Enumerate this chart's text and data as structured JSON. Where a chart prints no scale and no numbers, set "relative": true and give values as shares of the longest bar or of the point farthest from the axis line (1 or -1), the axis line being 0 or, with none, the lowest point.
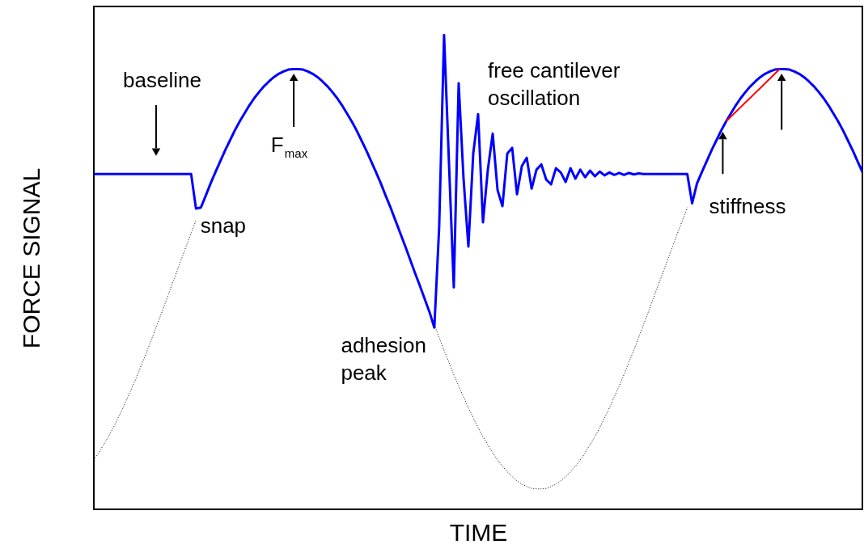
{
  "chart_data": {
    "type": "line",
    "relative": true,
    "xlabel": "TIME",
    "ylabel": "FORCE SIGNAL",
    "categories": [
      null,
      null,
      null,
      null,
      null,
      null,
      null,
      null,
      null,
      null,
      null,
      null,
      null,
      null,
      null,
      null,
      null,
      null,
      null,
      null,
      null,
      null,
      null,
      null,
      null,
      null,
      null,
      null,
      null,
      null,
      null,
      null,
      null,
      null,
      null,
      null,
      null,
      null,
      null,
      null,
      null,
      null,
      null,
      null,
      null,
      null,
      null,
      null,
      null,
      null,
      null,
      null,
      null,
      null,
      null,
      null,
      null,
      null,
      null,
      null,
      null,
      null,
      null,
      null,
      null,
      null,
      null,
      null,
      null,
      null,
      null,
      null,
      null,
      null,
      null,
      null,
      null,
      null,
      null,
      null,
      null,
      null,
      null,
      null,
      null,
      null,
      null,
      null,
      null,
      null,
      null,
      null,
      null,
      null,
      null,
      null,
      null,
      null,
      null,
      null,
      null,
      null,
      null,
      null,
      null,
      null,
      null,
      null,
      null,
      null,
      null,
      null,
      null,
      null,
      null,
      null,
      null,
      null,
      null,
      null,
      null,
      null,
      null,
      null,
      null,
      null,
      null,
      null,
      null,
      null,
      null,
      null,
      null,
      null,
      null,
      null,
      null,
      null,
      null,
      null,
      null,
      null,
      null,
      null,
      null,
      null,
      null,
      null,
      null,
      null,
      null,
      null,
      null,
      null,
      null,
      null,
      null,
      null,
      null
    ],
    "series": [
      {
        "color": "#0000ff",
        "line_style": "solid",
        "values": [
          0.707,
          0.707,
          0.707,
          0.707,
          0.707,
          0.707,
          0.707,
          0.707,
          0.707,
          0.707,
          0.707,
          0.707,
          0.707,
          0.707,
          0.707,
          0.707,
          0.707,
          0.707,
          0.707,
          0.707,
          0.707,
          0.634,
          0.636,
          0.661,
          0.687,
          0.711,
          0.734,
          0.757,
          0.778,
          0.799,
          0.818,
          0.835,
          0.852,
          0.867,
          0.88,
          0.892,
          0.902,
          0.911,
          0.918,
          0.923,
          0.927,
          0.928,
          0.928,
          0.927,
          0.923,
          0.918,
          0.911,
          0.902,
          0.892,
          0.88,
          0.867,
          0.852,
          0.835,
          0.818,
          0.799,
          0.778,
          0.757,
          0.734,
          0.711,
          0.687,
          0.661,
          0.636,
          0.609,
          0.582,
          0.555,
          0.527,
          0.499,
          0.472,
          0.444,
          0.416,
          0.383,
          0.596,
          1.0,
          0.733,
          0.468,
          0.898,
          0.698,
          0.554,
          0.75,
          0.833,
          0.605,
          0.716,
          0.792,
          0.673,
          0.639,
          0.75,
          0.762,
          0.664,
          0.724,
          0.741,
          0.676,
          0.716,
          0.727,
          0.695,
          0.685,
          0.719,
          0.71,
          0.69,
          0.719,
          0.697,
          0.716,
          0.7,
          0.714,
          0.702,
          0.712,
          0.704,
          0.71,
          0.705,
          0.709,
          0.705,
          0.709,
          0.706,
          0.708,
          0.707,
          0.707,
          0.707,
          0.707,
          0.707,
          0.707,
          0.707,
          0.707,
          0.707,
          0.707,
          0.645,
          0.687,
          0.711,
          0.734,
          0.757,
          0.778,
          0.799,
          0.818,
          0.835,
          0.852,
          0.867,
          0.88,
          0.892,
          0.902,
          0.911,
          0.918,
          0.923,
          0.927,
          0.928,
          0.928,
          0.927,
          0.923,
          0.918,
          0.911,
          0.902,
          0.892,
          0.88,
          0.867,
          0.852,
          0.835,
          0.818,
          0.799,
          0.778,
          0.757,
          0.734,
          0.711
        ]
      },
      {
        "color": "#000000",
        "line_style": "dotted",
        "values": [
          0.104,
          0.119,
          0.136,
          0.153,
          0.172,
          0.193,
          0.214,
          0.237,
          0.26,
          0.284,
          0.31,
          0.335,
          0.362,
          0.389,
          0.416,
          0.444,
          0.472,
          0.499,
          0.527,
          0.555,
          0.582,
          0.609,
          null,
          null,
          null,
          null,
          null,
          null,
          null,
          null,
          null,
          null,
          null,
          null,
          null,
          null,
          null,
          null,
          null,
          null,
          null,
          null,
          null,
          null,
          null,
          null,
          null,
          null,
          null,
          null,
          null,
          null,
          null,
          null,
          null,
          null,
          null,
          null,
          null,
          null,
          null,
          null,
          null,
          null,
          null,
          null,
          null,
          null,
          null,
          null,
          0.389,
          0.362,
          0.335,
          0.31,
          0.284,
          0.26,
          0.237,
          0.214,
          0.193,
          0.172,
          0.153,
          0.136,
          0.119,
          0.104,
          0.091,
          0.079,
          0.069,
          0.06,
          0.053,
          0.048,
          0.044,
          0.043,
          0.043,
          0.044,
          0.048,
          0.053,
          0.06,
          0.069,
          0.079,
          0.091,
          0.104,
          0.119,
          0.136,
          0.153,
          0.172,
          0.193,
          0.214,
          0.237,
          0.26,
          0.284,
          0.31,
          0.335,
          0.362,
          0.389,
          0.416,
          0.444,
          0.472,
          0.499,
          0.527,
          0.555,
          0.582,
          0.609,
          0.636,
          null,
          null,
          null,
          null,
          null,
          null,
          null,
          null,
          null,
          null,
          null,
          null,
          null,
          null,
          null,
          null,
          null,
          null,
          null,
          null,
          null,
          null,
          null,
          null,
          null,
          null,
          null,
          null,
          null,
          null,
          null,
          null,
          null,
          null,
          null,
          null
        ]
      },
      {
        "color": "#ff0000",
        "line_style": "solid",
        "values": [
          null,
          null,
          null,
          null,
          null,
          null,
          null,
          null,
          null,
          null,
          null,
          null,
          null,
          null,
          null,
          null,
          null,
          null,
          null,
          null,
          null,
          null,
          null,
          null,
          null,
          null,
          null,
          null,
          null,
          null,
          null,
          null,
          null,
          null,
          null,
          null,
          null,
          null,
          null,
          null,
          null,
          null,
          null,
          null,
          null,
          null,
          null,
          null,
          null,
          null,
          null,
          null,
          null,
          null,
          null,
          null,
          null,
          null,
          null,
          null,
          null,
          null,
          null,
          null,
          null,
          null,
          null,
          null,
          null,
          null,
          null,
          null,
          null,
          null,
          null,
          null,
          null,
          null,
          null,
          null,
          null,
          null,
          null,
          null,
          null,
          null,
          null,
          null,
          null,
          null,
          null,
          null,
          null,
          null,
          null,
          null,
          null,
          null,
          null,
          null,
          null,
          null,
          null,
          null,
          null,
          null,
          null,
          null,
          null,
          null,
          null,
          null,
          null,
          null,
          null,
          null,
          null,
          null,
          null,
          null,
          null,
          null,
          null,
          null,
          null,
          null,
          null,
          null,
          null,
          null,
          0.818,
          0.828,
          0.838,
          0.848,
          0.858,
          0.868,
          0.878,
          0.888,
          0.898,
          0.908,
          0.918,
          0.928,
          null,
          null,
          null,
          null,
          null,
          null,
          null,
          null,
          null,
          null,
          null,
          null,
          null,
          null,
          null,
          null,
          null
        ]
      }
    ],
    "annotations": [
      "baseline",
      "F$_{max}$",
      "snap",
      "adhesion\npeak",
      "free cantilever\noscillation",
      "stiffness"
    ]
  }
}
